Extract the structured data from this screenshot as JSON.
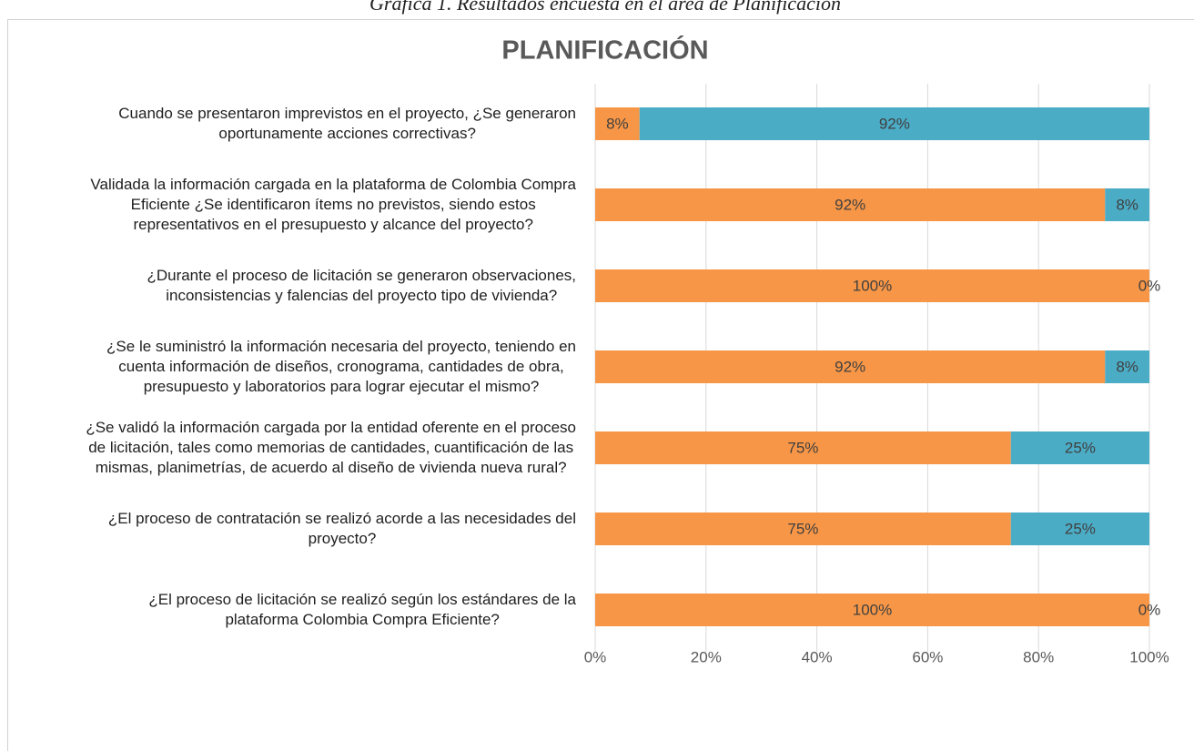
{
  "caption": "Gráfica 1. Resultados encuesta en el área de Planificación",
  "chart_data": {
    "type": "stacked_barh",
    "title": "PLANIFICACIÓN",
    "categories": [
      "Cuando se presentaron imprevistos en el proyecto, ¿Se generaron\noportunamente acciones correctivas?",
      "Validada la información cargada en la plataforma de Colombia Compra\nEficiente ¿Se identificaron ítems no previstos, siendo estos\nrepresentativos en el presupuesto y alcance del proyecto?",
      "¿Durante el proceso de licitación se generaron observaciones,\ninconsistencias y falencias del proyecto tipo de vivienda?",
      "¿Se le suministró la información necesaria del proyecto, teniendo en\ncuenta información de diseños, cronograma, cantidades de obra,\npresupuesto y laboratorios para lograr ejecutar el mismo?",
      "¿Se validó la información cargada por la entidad oferente en el proceso\nde licitación, tales como memorias de cantidades, cuantificación de las\nmismas, planimetrías, de acuerdo al diseño de vivienda nueva rural?",
      "¿El proceso de contratación se realizó acorde a las necesidades del\nproyecto?",
      "¿El proceso de licitación se realizó según los estándares de la\nplataforma Colombia Compra Eficiente?"
    ],
    "series": [
      {
        "color": "#f79646",
        "values": [
          8,
          92,
          100,
          92,
          75,
          75,
          100
        ],
        "value_labels": [
          "8%",
          "92%",
          "100%",
          "92%",
          "75%",
          "75%",
          "100%"
        ]
      },
      {
        "color": "#4bacc6",
        "values": [
          92,
          8,
          0,
          8,
          25,
          25,
          0
        ],
        "value_labels": [
          "92%",
          "8%",
          "0%",
          "8%",
          "25%",
          "25%",
          "0%"
        ]
      }
    ],
    "xlim": [
      0,
      100
    ],
    "xticks": [
      {
        "value": 0,
        "label": "0%"
      },
      {
        "value": 20,
        "label": "20%"
      },
      {
        "value": 40,
        "label": "40%"
      },
      {
        "value": 60,
        "label": "60%"
      },
      {
        "value": 80,
        "label": "80%"
      },
      {
        "value": 100,
        "label": "100%"
      }
    ],
    "grid": true
  }
}
